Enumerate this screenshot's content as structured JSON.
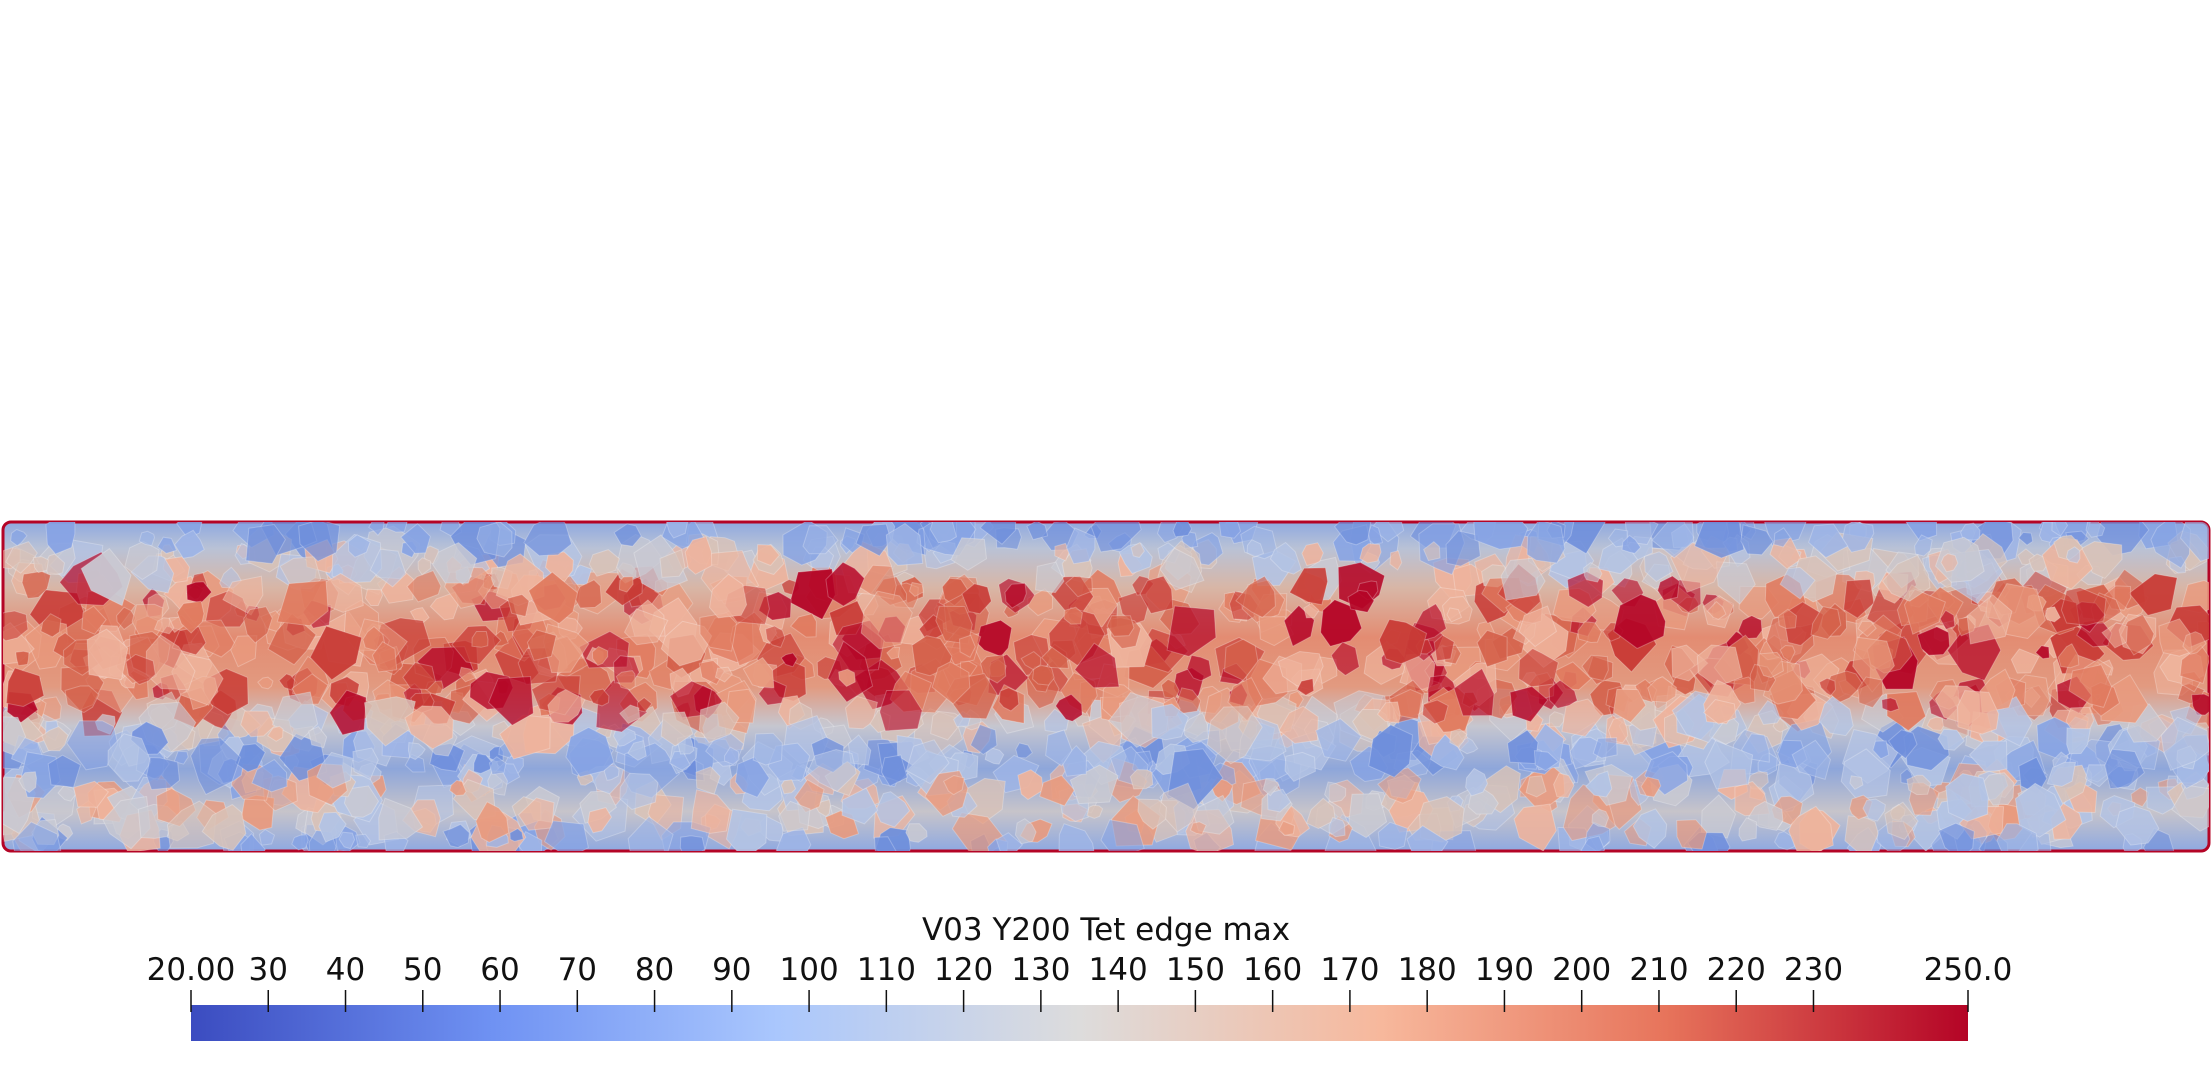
{
  "colorbar": {
    "title": "V03 Y200 Tet edge max",
    "min": 20.0,
    "max": 250.0,
    "ticks": [
      {
        "label": "20.00",
        "value": 20
      },
      {
        "label": "30",
        "value": 30
      },
      {
        "label": "40",
        "value": 40
      },
      {
        "label": "50",
        "value": 50
      },
      {
        "label": "60",
        "value": 60
      },
      {
        "label": "70",
        "value": 70
      },
      {
        "label": "80",
        "value": 80
      },
      {
        "label": "90",
        "value": 90
      },
      {
        "label": "100",
        "value": 100
      },
      {
        "label": "110",
        "value": 110
      },
      {
        "label": "120",
        "value": 120
      },
      {
        "label": "130",
        "value": 130
      },
      {
        "label": "140",
        "value": 140
      },
      {
        "label": "150",
        "value": 150
      },
      {
        "label": "160",
        "value": 160
      },
      {
        "label": "170",
        "value": 170
      },
      {
        "label": "180",
        "value": 180
      },
      {
        "label": "190",
        "value": 190
      },
      {
        "label": "200",
        "value": 200
      },
      {
        "label": "210",
        "value": 210
      },
      {
        "label": "220",
        "value": 220
      },
      {
        "label": "230",
        "value": 230
      },
      {
        "label": "250.0",
        "value": 250
      }
    ],
    "colormap": [
      "#3b4cc0",
      "#6f92f3",
      "#aac7fd",
      "#dddcdc",
      "#f7b89c",
      "#e7745b",
      "#b40426"
    ]
  }
}
